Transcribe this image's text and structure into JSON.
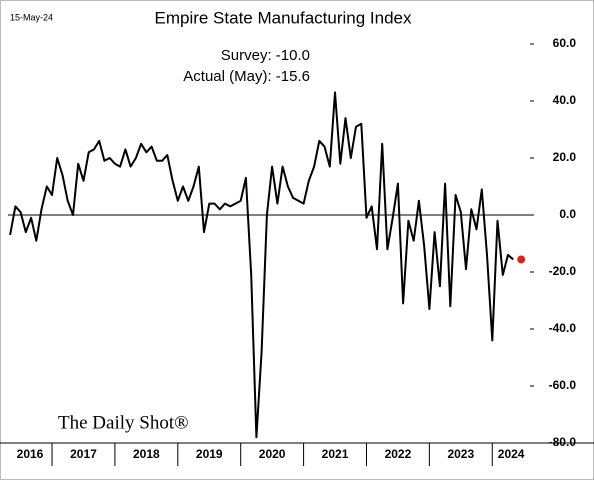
{
  "chart_data": {
    "type": "line",
    "date": "15-May-24",
    "title": "Empire State Manufacturing Index",
    "annotations": [
      "Survey:  -10.0",
      "Actual (May):  -15.6"
    ],
    "watermark": "The Daily Shot®",
    "years": [
      "2016",
      "2017",
      "2018",
      "2019",
      "2020",
      "2021",
      "2022",
      "2023",
      "2024"
    ],
    "xlim": [
      2016.3,
      2024.6
    ],
    "xticks": [
      2017,
      2018,
      2019,
      2020,
      2021,
      2022,
      2023,
      2024
    ],
    "ylim": [
      -80,
      60
    ],
    "yticks": [
      {
        "value": -80,
        "label": "-80.0"
      },
      {
        "value": -60,
        "label": "-60.0"
      },
      {
        "value": -40,
        "label": "-40.0"
      },
      {
        "value": -20,
        "label": "-20.0"
      },
      {
        "value": 0,
        "label": "0.0"
      },
      {
        "value": 20,
        "label": "20.0"
      },
      {
        "value": 40,
        "label": "40.0"
      },
      {
        "value": 60,
        "label": "60.0"
      }
    ],
    "series": [
      {
        "name": "Empire State Manufacturing Index",
        "color": "#000000",
        "highlight_color": "#e0201b",
        "x": [
          2016.333,
          2016.417,
          2016.5,
          2016.583,
          2016.667,
          2016.75,
          2016.833,
          2016.917,
          2017.0,
          2017.083,
          2017.167,
          2017.25,
          2017.333,
          2017.417,
          2017.5,
          2017.583,
          2017.667,
          2017.75,
          2017.833,
          2017.917,
          2018.0,
          2018.083,
          2018.167,
          2018.25,
          2018.333,
          2018.417,
          2018.5,
          2018.583,
          2018.667,
          2018.75,
          2018.833,
          2018.917,
          2019.0,
          2019.083,
          2019.167,
          2019.25,
          2019.333,
          2019.417,
          2019.5,
          2019.583,
          2019.667,
          2019.75,
          2019.833,
          2019.917,
          2020.0,
          2020.083,
          2020.167,
          2020.25,
          2020.333,
          2020.417,
          2020.5,
          2020.583,
          2020.667,
          2020.75,
          2020.833,
          2020.917,
          2021.0,
          2021.083,
          2021.167,
          2021.25,
          2021.333,
          2021.417,
          2021.5,
          2021.583,
          2021.667,
          2021.75,
          2021.833,
          2021.917,
          2022.0,
          2022.083,
          2022.167,
          2022.25,
          2022.333,
          2022.417,
          2022.5,
          2022.583,
          2022.667,
          2022.75,
          2022.833,
          2022.917,
          2023.0,
          2023.083,
          2023.167,
          2023.25,
          2023.333,
          2023.417,
          2023.5,
          2023.583,
          2023.667,
          2023.75,
          2023.833,
          2023.917,
          2024.0,
          2024.083,
          2024.167,
          2024.25,
          2024.333
        ],
        "values": [
          -7,
          3,
          1,
          -6,
          -1,
          -9,
          2,
          10,
          7,
          20,
          14,
          5,
          0,
          18,
          12,
          22,
          23,
          26,
          19,
          20,
          18,
          17,
          23,
          17,
          20,
          25,
          22,
          24,
          19,
          19,
          21,
          12,
          5,
          10,
          5,
          10,
          17,
          -6,
          4,
          4,
          2,
          4,
          3,
          4,
          5,
          13,
          -21,
          -78,
          -48,
          0,
          17,
          4,
          17,
          10,
          6,
          5,
          4,
          12,
          17,
          26,
          24,
          17,
          43,
          18,
          34,
          20,
          31,
          32,
          -1,
          3,
          -12,
          25,
          -12,
          -1,
          11,
          -31,
          -2,
          -9,
          5,
          -11,
          -33,
          -6,
          -25,
          11,
          -32,
          7,
          1,
          -19,
          2,
          -5,
          9,
          -14,
          -44,
          -2,
          -21,
          -14,
          -15.6
        ]
      }
    ]
  }
}
